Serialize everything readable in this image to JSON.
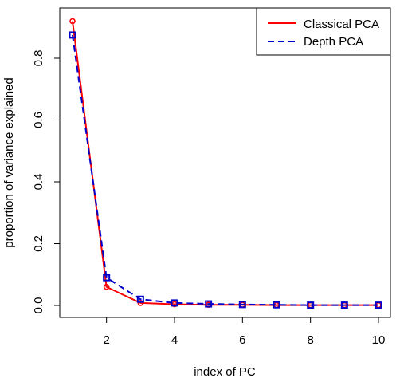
{
  "chart_data": {
    "type": "line",
    "title": "",
    "xlabel": "index of PC",
    "ylabel": "proportion of variance explained",
    "x": [
      1,
      2,
      3,
      4,
      5,
      6,
      7,
      8,
      9,
      10
    ],
    "xlim": [
      1,
      10
    ],
    "ylim": [
      0,
      0.92
    ],
    "xticks": [
      2,
      4,
      6,
      8,
      10
    ],
    "yticks": [
      0.0,
      0.2,
      0.4,
      0.6,
      0.8
    ],
    "xtick_labels": [
      "2",
      "4",
      "6",
      "8",
      "10"
    ],
    "ytick_labels": [
      "0.0",
      "0.2",
      "0.4",
      "0.6",
      "0.8"
    ],
    "grid": false,
    "legend": "top-right",
    "series": [
      {
        "name": "Classical PCA",
        "color": "#ff0000",
        "line": "solid",
        "marker": "circle",
        "values": [
          0.92,
          0.06,
          0.008,
          0.004,
          0.002,
          0.002,
          0.001,
          0.001,
          0.001,
          0.001
        ]
      },
      {
        "name": "Depth PCA",
        "color": "#0000cc",
        "line": "dashed",
        "marker": "square",
        "values": [
          0.875,
          0.09,
          0.02,
          0.008,
          0.005,
          0.003,
          0.002,
          0.001,
          0.001,
          0.001
        ]
      }
    ]
  }
}
